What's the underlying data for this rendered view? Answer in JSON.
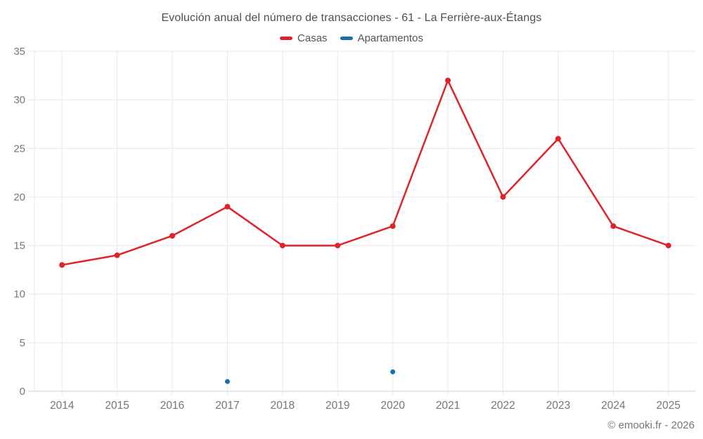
{
  "footer": {
    "text": "© emooki.fr - 2026"
  },
  "style": {
    "grid_color": "#e9e9e9",
    "axis_color": "#cfcfcf",
    "label_color": "#767676",
    "title_color": "#4f4f4f",
    "footer_color": "#757575"
  },
  "chart_data": {
    "type": "line",
    "title": "Evolución anual del número de transacciones - 61 - La Ferrière-aux-Étangs",
    "categories": [
      "2014",
      "2015",
      "2016",
      "2017",
      "2018",
      "2019",
      "2020",
      "2021",
      "2022",
      "2023",
      "2024",
      "2025"
    ],
    "series": [
      {
        "name": "Casas",
        "color": "#e02329",
        "point_radius": 4,
        "values": [
          13,
          14,
          16,
          19,
          15,
          15,
          17,
          32,
          20,
          26,
          17,
          15
        ]
      },
      {
        "name": "Apartamentos",
        "color": "#1770a8",
        "point_radius": 3.5,
        "values": [
          null,
          null,
          null,
          1,
          null,
          null,
          2,
          null,
          null,
          null,
          null,
          null
        ]
      }
    ],
    "xlabel": "",
    "ylabel": "",
    "ylim": [
      0,
      35
    ],
    "ytick_step": 5,
    "grid": true,
    "legend_position": "top"
  }
}
